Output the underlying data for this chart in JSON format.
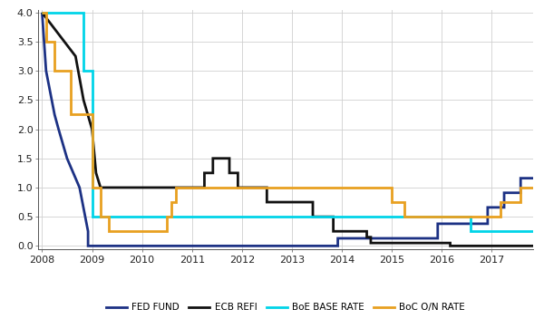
{
  "background_color": "#ffffff",
  "grid_color": "#d0d0d0",
  "ylim": [
    -0.05,
    4.05
  ],
  "xlim": [
    2007.92,
    2017.83
  ],
  "yticks": [
    0,
    0.5,
    1,
    1.5,
    2,
    2.5,
    3,
    3.5,
    4
  ],
  "xticks": [
    2008,
    2009,
    2010,
    2011,
    2012,
    2013,
    2014,
    2015,
    2016,
    2017
  ],
  "series": {
    "FED FUND": {
      "color": "#1c3184",
      "linewidth": 2.0,
      "steps": [
        [
          2008.0,
          4.0
        ],
        [
          2008.08,
          3.0
        ],
        [
          2008.25,
          2.25
        ],
        [
          2008.33,
          2.0
        ],
        [
          2008.5,
          1.5
        ],
        [
          2008.75,
          1.0
        ],
        [
          2008.92,
          0.25
        ],
        [
          2008.92,
          0.0
        ],
        [
          2013.92,
          0.0
        ],
        [
          2013.92,
          0.13
        ],
        [
          2015.92,
          0.13
        ],
        [
          2015.92,
          0.38
        ],
        [
          2016.92,
          0.38
        ],
        [
          2016.92,
          0.66
        ],
        [
          2017.25,
          0.66
        ],
        [
          2017.25,
          0.91
        ],
        [
          2017.58,
          0.91
        ],
        [
          2017.58,
          1.16
        ],
        [
          2017.83,
          1.16
        ]
      ]
    },
    "ECB REFI": {
      "color": "#111111",
      "linewidth": 2.0,
      "steps": [
        [
          2008.0,
          4.0
        ],
        [
          2008.67,
          3.25
        ],
        [
          2008.83,
          2.5
        ],
        [
          2009.0,
          2.0
        ],
        [
          2009.08,
          1.25
        ],
        [
          2009.17,
          1.0
        ],
        [
          2009.25,
          1.0
        ],
        [
          2011.25,
          1.0
        ],
        [
          2011.25,
          1.25
        ],
        [
          2011.42,
          1.25
        ],
        [
          2011.42,
          1.5
        ],
        [
          2011.75,
          1.5
        ],
        [
          2011.75,
          1.25
        ],
        [
          2011.92,
          1.25
        ],
        [
          2011.92,
          1.0
        ],
        [
          2012.5,
          1.0
        ],
        [
          2012.5,
          0.75
        ],
        [
          2013.42,
          0.75
        ],
        [
          2013.42,
          0.5
        ],
        [
          2013.83,
          0.5
        ],
        [
          2013.83,
          0.25
        ],
        [
          2014.5,
          0.25
        ],
        [
          2014.5,
          0.15
        ],
        [
          2014.58,
          0.15
        ],
        [
          2014.58,
          0.05
        ],
        [
          2016.17,
          0.05
        ],
        [
          2016.17,
          0.0
        ],
        [
          2017.83,
          0.0
        ]
      ]
    },
    "BoE BASE RATE": {
      "color": "#00d4e8",
      "linewidth": 2.0,
      "steps": [
        [
          2008.0,
          4.0
        ],
        [
          2008.83,
          4.0
        ],
        [
          2008.83,
          3.0
        ],
        [
          2009.0,
          3.0
        ],
        [
          2009.0,
          0.5
        ],
        [
          2016.58,
          0.5
        ],
        [
          2016.58,
          0.25
        ],
        [
          2017.83,
          0.25
        ]
      ]
    },
    "BoC O/N RATE": {
      "color": "#e8a020",
      "linewidth": 2.0,
      "steps": [
        [
          2008.0,
          4.0
        ],
        [
          2008.08,
          4.0
        ],
        [
          2008.08,
          3.5
        ],
        [
          2008.25,
          3.5
        ],
        [
          2008.25,
          3.0
        ],
        [
          2008.58,
          3.0
        ],
        [
          2008.58,
          2.25
        ],
        [
          2009.0,
          2.25
        ],
        [
          2009.0,
          1.0
        ],
        [
          2009.17,
          1.0
        ],
        [
          2009.17,
          0.5
        ],
        [
          2009.33,
          0.5
        ],
        [
          2009.33,
          0.25
        ],
        [
          2010.5,
          0.25
        ],
        [
          2010.5,
          0.5
        ],
        [
          2010.58,
          0.5
        ],
        [
          2010.58,
          0.75
        ],
        [
          2010.67,
          0.75
        ],
        [
          2010.67,
          1.0
        ],
        [
          2015.0,
          1.0
        ],
        [
          2015.0,
          0.75
        ],
        [
          2015.25,
          0.75
        ],
        [
          2015.25,
          0.5
        ],
        [
          2017.17,
          0.5
        ],
        [
          2017.17,
          0.75
        ],
        [
          2017.58,
          0.75
        ],
        [
          2017.58,
          1.0
        ],
        [
          2017.83,
          1.0
        ]
      ]
    }
  },
  "legend": [
    {
      "label": "FED FUND",
      "color": "#1c3184"
    },
    {
      "label": "ECB REFI",
      "color": "#111111"
    },
    {
      "label": "BoE BASE RATE",
      "color": "#00d4e8"
    },
    {
      "label": "BoC O/N RATE",
      "color": "#e8a020"
    }
  ]
}
